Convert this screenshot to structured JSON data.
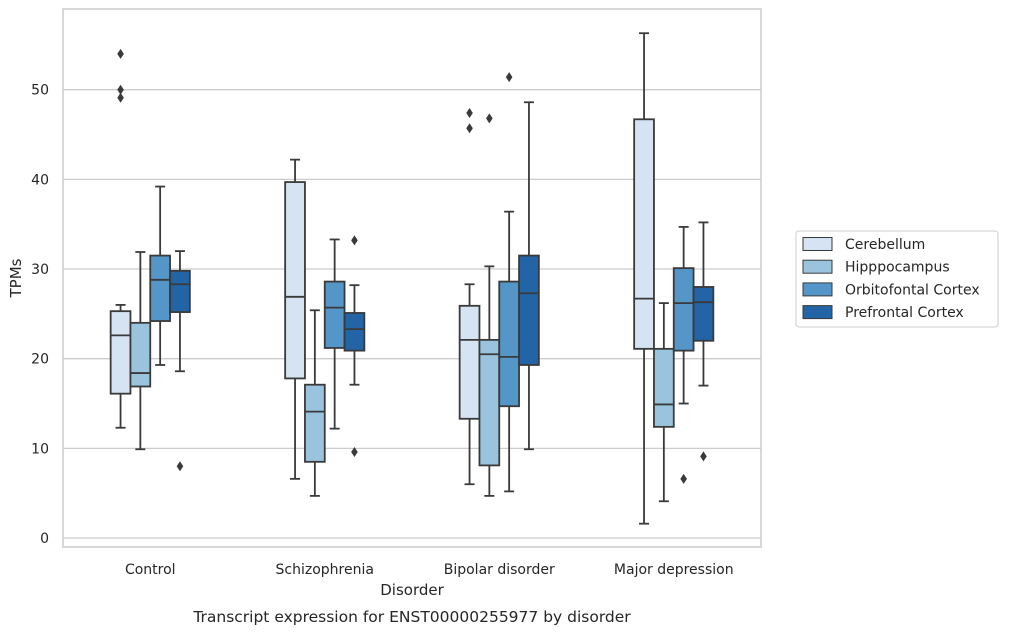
{
  "chart_data": {
    "type": "box",
    "title": "",
    "caption": "Transcript expression for ENST00000255977 by disorder",
    "xlabel": "Disorder",
    "ylabel": "TPMs",
    "ylim": [
      -1,
      59
    ],
    "yticks": [
      0,
      10,
      20,
      30,
      40,
      50
    ],
    "grid": "horizontal",
    "legend_position": "right-center",
    "categories": [
      "Control",
      "Schizophrenia",
      "Bipolar disorder",
      "Major depression"
    ],
    "series": [
      {
        "name": "Cerebellum",
        "color": "#d6e3f2",
        "boxes": [
          {
            "whisker_low": 12.3,
            "q1": 16.1,
            "median": 22.6,
            "q3": 25.3,
            "whisker_high": 26.0,
            "outliers": [
              54.0,
              50.0,
              49.1
            ]
          },
          {
            "whisker_low": 6.6,
            "q1": 17.8,
            "median": 26.9,
            "q3": 39.7,
            "whisker_high": 42.2,
            "outliers": []
          },
          {
            "whisker_low": 6.0,
            "q1": 13.3,
            "median": 22.1,
            "q3": 25.9,
            "whisker_high": 28.3,
            "outliers": [
              47.4,
              45.7
            ]
          },
          {
            "whisker_low": 1.6,
            "q1": 21.1,
            "median": 26.7,
            "q3": 46.7,
            "whisker_high": 56.3,
            "outliers": []
          }
        ]
      },
      {
        "name": "Hipppocampus",
        "color": "#9ac4de",
        "boxes": [
          {
            "whisker_low": 9.9,
            "q1": 16.9,
            "median": 18.4,
            "q3": 24.0,
            "whisker_high": 31.9,
            "outliers": []
          },
          {
            "whisker_low": 4.7,
            "q1": 8.5,
            "median": 14.1,
            "q3": 17.1,
            "whisker_high": 25.4,
            "outliers": []
          },
          {
            "whisker_low": 4.7,
            "q1": 8.1,
            "median": 20.5,
            "q3": 22.1,
            "whisker_high": 30.3,
            "outliers": [
              46.8
            ]
          },
          {
            "whisker_low": 4.1,
            "q1": 12.4,
            "median": 14.9,
            "q3": 21.1,
            "whisker_high": 26.2,
            "outliers": []
          }
        ]
      },
      {
        "name": "Orbitofontal Cortex",
        "color": "#5496c8",
        "boxes": [
          {
            "whisker_low": 19.3,
            "q1": 24.2,
            "median": 28.8,
            "q3": 31.5,
            "whisker_high": 39.2,
            "outliers": []
          },
          {
            "whisker_low": 12.2,
            "q1": 21.2,
            "median": 25.7,
            "q3": 28.6,
            "whisker_high": 33.3,
            "outliers": []
          },
          {
            "whisker_low": 5.2,
            "q1": 14.7,
            "median": 20.2,
            "q3": 28.6,
            "whisker_high": 36.4,
            "outliers": [
              51.4
            ]
          },
          {
            "whisker_low": 15.0,
            "q1": 20.9,
            "median": 26.2,
            "q3": 30.1,
            "whisker_high": 34.7,
            "outliers": [
              6.6
            ]
          }
        ]
      },
      {
        "name": "Prefrontal Cortex",
        "color": "#2264a6",
        "boxes": [
          {
            "whisker_low": 18.6,
            "q1": 25.2,
            "median": 28.3,
            "q3": 29.8,
            "whisker_high": 32.0,
            "outliers": [
              8.0
            ]
          },
          {
            "whisker_low": 17.1,
            "q1": 20.9,
            "median": 23.3,
            "q3": 25.1,
            "whisker_high": 28.2,
            "outliers": [
              33.2,
              9.6
            ]
          },
          {
            "whisker_low": 9.9,
            "q1": 19.3,
            "median": 27.3,
            "q3": 31.5,
            "whisker_high": 48.6,
            "outliers": []
          },
          {
            "whisker_low": 17.0,
            "q1": 22.0,
            "median": 26.3,
            "q3": 28.0,
            "whisker_high": 35.2,
            "outliers": [
              9.1
            ]
          }
        ]
      }
    ]
  }
}
